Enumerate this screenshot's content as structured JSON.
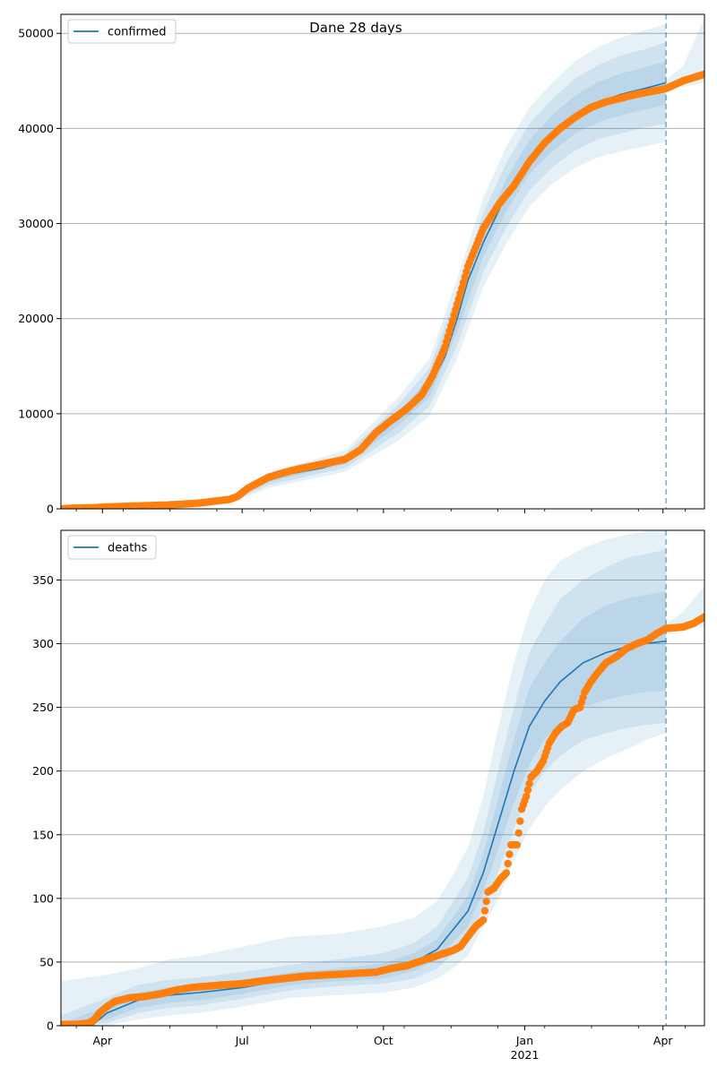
{
  "title": "Dane 28 days",
  "colors": {
    "line": "#1f77b4",
    "points": "#ff7f0e",
    "band": "#1f77b4",
    "grid": "#b0b0b0",
    "vline": "#1f77b4"
  },
  "x_ticks": [
    {
      "label": "Apr",
      "t": 17
    },
    {
      "label": "Jul",
      "t": 108
    },
    {
      "label": "Oct",
      "t": 200
    },
    {
      "label": "Jan",
      "t": 292,
      "sublabel": "2021"
    },
    {
      "label": "Apr",
      "t": 382
    }
  ],
  "x_range": [
    -10,
    409
  ],
  "forecast_start": 384,
  "chart_data": [
    {
      "type": "line",
      "legend": "confirmed",
      "legend_position": "upper-left",
      "ylim": [
        0,
        52000
      ],
      "yticks": [
        0,
        10000,
        20000,
        30000,
        40000,
        50000
      ],
      "grid": "horizontal",
      "line_points": [
        [
          -10,
          0
        ],
        [
          10,
          0
        ],
        [
          30,
          100
        ],
        [
          60,
          200
        ],
        [
          80,
          400
        ],
        [
          100,
          900
        ],
        [
          108,
          1500
        ],
        [
          115,
          2300
        ],
        [
          125,
          3000
        ],
        [
          140,
          3700
        ],
        [
          160,
          4300
        ],
        [
          175,
          5000
        ],
        [
          185,
          6000
        ],
        [
          195,
          7800
        ],
        [
          210,
          9500
        ],
        [
          220,
          11000
        ],
        [
          230,
          12800
        ],
        [
          240,
          16000
        ],
        [
          248,
          20000
        ],
        [
          255,
          24000
        ],
        [
          265,
          28000
        ],
        [
          280,
          33000
        ],
        [
          295,
          37000
        ],
        [
          310,
          39500
        ],
        [
          325,
          41500
        ],
        [
          340,
          42800
        ],
        [
          355,
          43600
        ],
        [
          370,
          44200
        ],
        [
          384,
          44800
        ]
      ],
      "band_inner": [
        [
          -10,
          0,
          0
        ],
        [
          60,
          150,
          250
        ],
        [
          100,
          800,
          1000
        ],
        [
          125,
          2800,
          3200
        ],
        [
          175,
          4700,
          5300
        ],
        [
          210,
          8800,
          10200
        ],
        [
          230,
          11800,
          13800
        ],
        [
          248,
          18600,
          21400
        ],
        [
          265,
          26500,
          29500
        ],
        [
          280,
          31300,
          34700
        ],
        [
          295,
          35200,
          38800
        ],
        [
          310,
          37600,
          41400
        ],
        [
          325,
          39500,
          43500
        ],
        [
          340,
          40700,
          44900
        ],
        [
          355,
          41400,
          45800
        ],
        [
          370,
          42000,
          46400
        ],
        [
          384,
          42500,
          47100
        ]
      ],
      "band_mid": [
        [
          -10,
          0,
          0
        ],
        [
          60,
          100,
          300
        ],
        [
          100,
          700,
          1100
        ],
        [
          125,
          2500,
          3500
        ],
        [
          175,
          4300,
          5700
        ],
        [
          210,
          8000,
          11000
        ],
        [
          230,
          10800,
          14800
        ],
        [
          248,
          17200,
          22800
        ],
        [
          265,
          24900,
          31100
        ],
        [
          280,
          29600,
          36400
        ],
        [
          295,
          33500,
          40500
        ],
        [
          310,
          35900,
          43100
        ],
        [
          325,
          37700,
          45300
        ],
        [
          340,
          38900,
          46700
        ],
        [
          355,
          39500,
          47700
        ],
        [
          370,
          40100,
          48300
        ],
        [
          384,
          40500,
          49100
        ]
      ],
      "band_outer": [
        [
          -10,
          0,
          100
        ],
        [
          60,
          50,
          400
        ],
        [
          100,
          600,
          1300
        ],
        [
          125,
          2200,
          3800
        ],
        [
          175,
          3900,
          6100
        ],
        [
          210,
          7200,
          11800
        ],
        [
          230,
          9800,
          15800
        ],
        [
          248,
          15800,
          24200
        ],
        [
          265,
          23300,
          32700
        ],
        [
          280,
          27900,
          38100
        ],
        [
          295,
          31800,
          42200
        ],
        [
          310,
          34200,
          44800
        ],
        [
          325,
          35900,
          47100
        ],
        [
          340,
          37000,
          48600
        ],
        [
          355,
          37600,
          49600
        ],
        [
          370,
          38100,
          50300
        ],
        [
          384,
          38600,
          51000
        ]
      ],
      "band_tail_outer": [
        [
          384,
          44100,
          45100
        ],
        [
          395,
          44400,
          46500
        ],
        [
          409,
          44800,
          51600
        ]
      ],
      "points_series": [
        [
          -10,
          0
        ],
        [
          -5,
          50
        ],
        [
          0,
          80
        ],
        [
          10,
          100
        ],
        [
          20,
          200
        ],
        [
          40,
          300
        ],
        [
          60,
          400
        ],
        [
          70,
          500
        ],
        [
          80,
          600
        ],
        [
          90,
          800
        ],
        [
          100,
          1000
        ],
        [
          105,
          1300
        ],
        [
          108,
          1700
        ],
        [
          112,
          2200
        ],
        [
          118,
          2700
        ],
        [
          125,
          3300
        ],
        [
          135,
          3800
        ],
        [
          145,
          4200
        ],
        [
          160,
          4700
        ],
        [
          175,
          5200
        ],
        [
          185,
          6200
        ],
        [
          195,
          8000
        ],
        [
          205,
          9300
        ],
        [
          215,
          10500
        ],
        [
          225,
          12000
        ],
        [
          232,
          14000
        ],
        [
          240,
          17000
        ],
        [
          248,
          21500
        ],
        [
          255,
          25500
        ],
        [
          265,
          29500
        ],
        [
          275,
          32000
        ],
        [
          285,
          34000
        ],
        [
          295,
          36500
        ],
        [
          305,
          38500
        ],
        [
          315,
          40000
        ],
        [
          325,
          41200
        ],
        [
          335,
          42200
        ],
        [
          345,
          42800
        ],
        [
          355,
          43200
        ],
        [
          365,
          43600
        ],
        [
          375,
          43900
        ],
        [
          384,
          44200
        ],
        [
          395,
          45000
        ],
        [
          409,
          45700
        ]
      ]
    },
    {
      "type": "line",
      "legend": "deaths",
      "legend_position": "upper-left",
      "ylim": [
        0,
        389
      ],
      "yticks": [
        0,
        50,
        100,
        150,
        200,
        250,
        300,
        350
      ],
      "grid": "horizontal",
      "line_points": [
        [
          -10,
          0
        ],
        [
          10,
          0
        ],
        [
          20,
          10
        ],
        [
          40,
          20
        ],
        [
          60,
          24
        ],
        [
          80,
          26
        ],
        [
          108,
          30
        ],
        [
          140,
          37
        ],
        [
          170,
          40
        ],
        [
          200,
          43
        ],
        [
          220,
          50
        ],
        [
          235,
          60
        ],
        [
          245,
          75
        ],
        [
          255,
          90
        ],
        [
          265,
          120
        ],
        [
          275,
          160
        ],
        [
          285,
          200
        ],
        [
          295,
          235
        ],
        [
          305,
          255
        ],
        [
          315,
          270
        ],
        [
          330,
          285
        ],
        [
          345,
          293
        ],
        [
          360,
          298
        ],
        [
          370,
          300
        ],
        [
          384,
          302
        ]
      ],
      "band_inner": [
        [
          -10,
          0,
          2
        ],
        [
          20,
          5,
          15
        ],
        [
          40,
          14,
          26
        ],
        [
          60,
          18,
          30
        ],
        [
          80,
          20,
          32
        ],
        [
          108,
          25,
          36
        ],
        [
          140,
          32,
          42
        ],
        [
          170,
          35,
          45
        ],
        [
          200,
          37,
          49
        ],
        [
          220,
          43,
          57
        ],
        [
          235,
          52,
          68
        ],
        [
          245,
          65,
          85
        ],
        [
          255,
          78,
          102
        ],
        [
          265,
          105,
          135
        ],
        [
          275,
          140,
          180
        ],
        [
          285,
          175,
          225
        ],
        [
          295,
          205,
          265
        ],
        [
          305,
          225,
          285
        ],
        [
          315,
          238,
          302
        ],
        [
          330,
          250,
          320
        ],
        [
          345,
          256,
          330
        ],
        [
          360,
          260,
          336
        ],
        [
          370,
          262,
          338
        ],
        [
          384,
          263,
          341
        ]
      ],
      "band_mid": [
        [
          -10,
          0,
          8
        ],
        [
          20,
          2,
          22
        ],
        [
          40,
          10,
          32
        ],
        [
          60,
          14,
          36
        ],
        [
          80,
          16,
          38
        ],
        [
          108,
          21,
          42
        ],
        [
          140,
          28,
          48
        ],
        [
          170,
          31,
          52
        ],
        [
          200,
          33,
          57
        ],
        [
          220,
          37,
          65
        ],
        [
          235,
          45,
          78
        ],
        [
          245,
          56,
          97
        ],
        [
          255,
          68,
          116
        ],
        [
          265,
          92,
          152
        ],
        [
          275,
          122,
          202
        ],
        [
          285,
          155,
          250
        ],
        [
          295,
          182,
          293
        ],
        [
          305,
          200,
          315
        ],
        [
          315,
          212,
          335
        ],
        [
          330,
          224,
          350
        ],
        [
          345,
          230,
          360
        ],
        [
          360,
          234,
          368
        ],
        [
          370,
          236,
          370
        ],
        [
          384,
          238,
          374
        ]
      ],
      "band_outer": [
        [
          -10,
          0,
          35
        ],
        [
          20,
          0,
          40
        ],
        [
          40,
          5,
          45
        ],
        [
          60,
          8,
          52
        ],
        [
          80,
          10,
          55
        ],
        [
          108,
          15,
          62
        ],
        [
          140,
          22,
          70
        ],
        [
          170,
          24,
          72
        ],
        [
          200,
          26,
          78
        ],
        [
          220,
          30,
          85
        ],
        [
          235,
          37,
          98
        ],
        [
          245,
          45,
          118
        ],
        [
          255,
          55,
          140
        ],
        [
          265,
          78,
          180
        ],
        [
          275,
          100,
          235
        ],
        [
          285,
          130,
          285
        ],
        [
          295,
          155,
          325
        ],
        [
          305,
          172,
          350
        ],
        [
          315,
          185,
          365
        ],
        [
          330,
          200,
          375
        ],
        [
          345,
          210,
          382
        ],
        [
          360,
          218,
          386
        ],
        [
          370,
          224,
          388
        ],
        [
          384,
          230,
          389
        ]
      ],
      "band_tail_outer": [
        [
          384,
          309,
          315
        ],
        [
          395,
          311,
          325
        ],
        [
          409,
          314,
          345
        ]
      ],
      "points_series": [
        [
          -10,
          1
        ],
        [
          0,
          1
        ],
        [
          8,
          2
        ],
        [
          12,
          5
        ],
        [
          15,
          10
        ],
        [
          20,
          15
        ],
        [
          25,
          19
        ],
        [
          35,
          22
        ],
        [
          45,
          23
        ],
        [
          55,
          25
        ],
        [
          65,
          28
        ],
        [
          75,
          30
        ],
        [
          85,
          31
        ],
        [
          95,
          32
        ],
        [
          108,
          33
        ],
        [
          120,
          35
        ],
        [
          135,
          37
        ],
        [
          150,
          39
        ],
        [
          165,
          40
        ],
        [
          180,
          41
        ],
        [
          195,
          42
        ],
        [
          205,
          45
        ],
        [
          215,
          47
        ],
        [
          225,
          51
        ],
        [
          235,
          55
        ],
        [
          245,
          59
        ],
        [
          250,
          62
        ],
        [
          255,
          70
        ],
        [
          260,
          78
        ],
        [
          265,
          83
        ],
        [
          268,
          105
        ],
        [
          272,
          108
        ],
        [
          276,
          115
        ],
        [
          280,
          120
        ],
        [
          283,
          142
        ],
        [
          287,
          142
        ],
        [
          290,
          170
        ],
        [
          293,
          180
        ],
        [
          296,
          195
        ],
        [
          300,
          200
        ],
        [
          304,
          208
        ],
        [
          308,
          222
        ],
        [
          312,
          230
        ],
        [
          316,
          235
        ],
        [
          320,
          238
        ],
        [
          324,
          248
        ],
        [
          328,
          250
        ],
        [
          331,
          262
        ],
        [
          335,
          270
        ],
        [
          340,
          278
        ],
        [
          345,
          285
        ],
        [
          352,
          290
        ],
        [
          358,
          296
        ],
        [
          365,
          300
        ],
        [
          372,
          303
        ],
        [
          378,
          308
        ],
        [
          384,
          312
        ],
        [
          395,
          313
        ],
        [
          402,
          316
        ],
        [
          409,
          321
        ]
      ]
    }
  ]
}
